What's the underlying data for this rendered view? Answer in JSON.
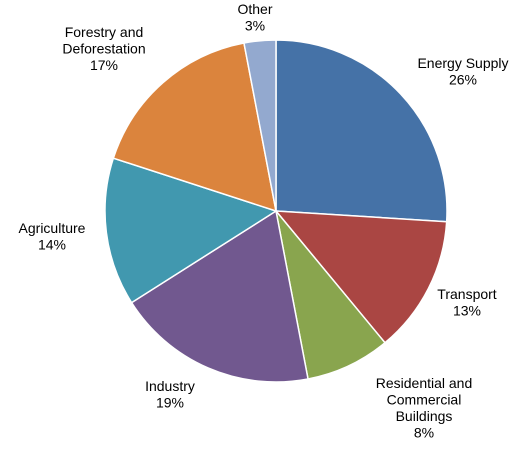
{
  "chart_data": {
    "type": "pie",
    "title": "",
    "start_angle_deg": 0,
    "direction": "clockwise",
    "legend": "none",
    "slices": [
      {
        "name": "Energy Supply",
        "label_lines": [
          "Energy Supply"
        ],
        "value": 26,
        "value_label": "26%",
        "color": "#4572A7"
      },
      {
        "name": "Transport",
        "label_lines": [
          "Transport"
        ],
        "value": 13,
        "value_label": "13%",
        "color": "#AA4643"
      },
      {
        "name": "Residential and Commercial Buildings",
        "label_lines": [
          "Residential and",
          "Commercial",
          "Buildings"
        ],
        "value": 8,
        "value_label": "8%",
        "color": "#89A54E"
      },
      {
        "name": "Industry",
        "label_lines": [
          "Industry"
        ],
        "value": 19,
        "value_label": "19%",
        "color": "#71588F"
      },
      {
        "name": "Agriculture",
        "label_lines": [
          "Agriculture"
        ],
        "value": 14,
        "value_label": "14%",
        "color": "#4198AF"
      },
      {
        "name": "Forestry and Deforestation",
        "label_lines": [
          "Forestry and",
          "Deforestation"
        ],
        "value": 17,
        "value_label": "17%",
        "color": "#DB843D"
      },
      {
        "name": "Other",
        "label_lines": [
          "Other"
        ],
        "value": 3,
        "value_label": "3%",
        "color": "#93A9CF"
      }
    ]
  }
}
